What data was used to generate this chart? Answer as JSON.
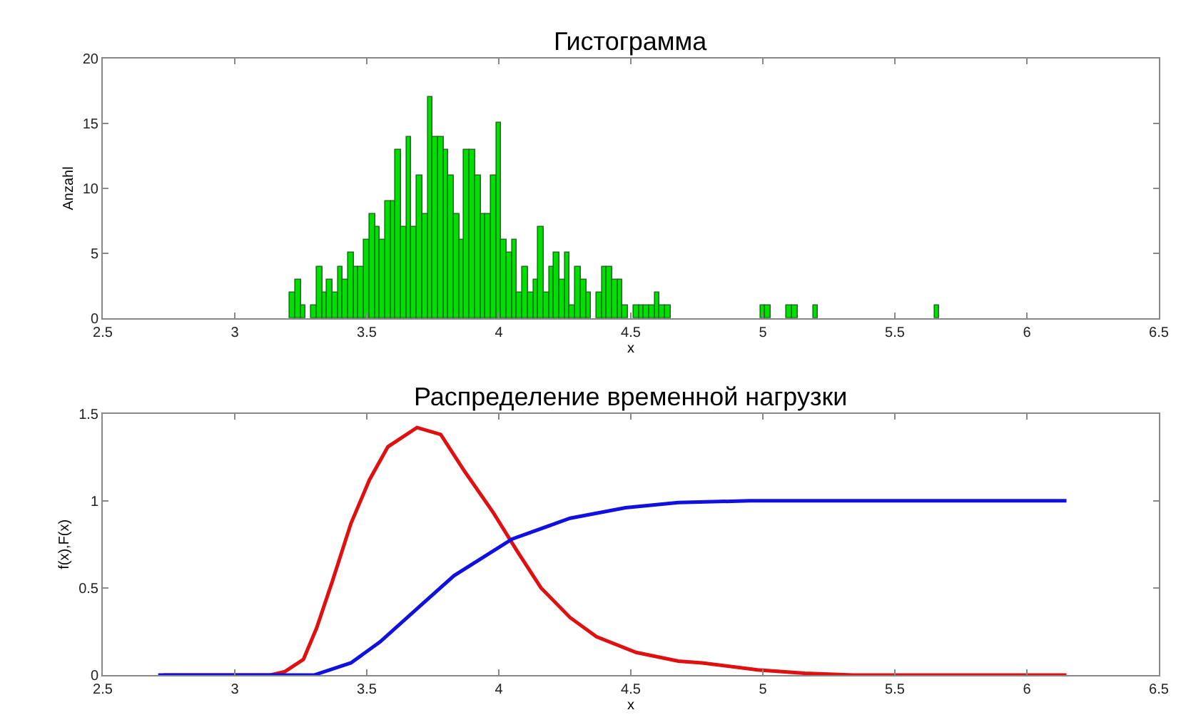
{
  "chart_data": [
    {
      "type": "histogram",
      "title": "Гистограмма",
      "xlabel": "x",
      "ylabel": "Anzahl",
      "color": "#00e000",
      "bins": [
        3.21,
        3.23,
        3.25,
        3.27,
        3.29,
        3.31,
        3.33,
        3.35,
        3.37,
        3.39,
        3.41,
        3.43,
        3.45,
        3.47,
        3.49,
        3.51,
        3.53,
        3.55,
        3.57,
        3.59,
        3.61,
        3.63,
        3.65,
        3.67,
        3.69,
        3.71,
        3.73,
        3.75,
        3.77,
        3.79,
        3.81,
        3.83,
        3.85,
        3.87,
        3.89,
        3.91,
        3.93,
        3.95,
        3.97,
        3.99,
        4.01,
        4.03,
        4.05,
        4.07,
        4.09,
        4.11,
        4.13,
        4.15,
        4.17,
        4.19,
        4.21,
        4.23,
        4.25,
        4.27,
        4.29,
        4.31,
        4.33,
        4.35,
        4.37,
        4.39,
        4.41,
        4.43,
        4.45,
        4.47,
        4.49,
        4.51,
        4.53,
        4.55,
        4.57,
        4.59,
        4.61,
        4.63,
        4.65,
        4.67,
        4.69,
        4.71,
        4.73,
        4.75,
        4.77,
        4.79,
        4.81,
        4.83,
        4.85,
        4.87,
        4.89,
        4.91,
        4.93,
        4.95,
        4.97,
        4.99,
        5.01,
        5.03,
        5.05,
        5.07,
        5.09,
        5.11,
        5.13,
        5.15,
        5.17,
        5.19,
        5.21,
        5.23,
        5.25,
        5.27,
        5.29,
        5.31,
        5.33,
        5.35,
        5.37,
        5.39,
        5.41,
        5.43,
        5.45,
        5.47,
        5.49,
        5.51,
        5.53,
        5.55,
        5.57,
        5.59,
        5.61,
        5.63,
        5.65,
        5.67
      ],
      "values": [
        2,
        3,
        1,
        0,
        1,
        4,
        2,
        3,
        2,
        4,
        3,
        5,
        4,
        4,
        6,
        8,
        7,
        6,
        9,
        9,
        13,
        7,
        14,
        7,
        11,
        8,
        17,
        14,
        14,
        13,
        11,
        8,
        6,
        13,
        13,
        11,
        8,
        8,
        11,
        15,
        6,
        5,
        6,
        2,
        4,
        2,
        3,
        7,
        2,
        4,
        5,
        3,
        5,
        1,
        4,
        3,
        2,
        0,
        2,
        4,
        4,
        3,
        3,
        1,
        0,
        1,
        1,
        1,
        1,
        2,
        1,
        1,
        0,
        0,
        0,
        0,
        0,
        0,
        0,
        0,
        0,
        0,
        0,
        0,
        0,
        0,
        0,
        0,
        0,
        1,
        1,
        0,
        0,
        0,
        1,
        1,
        0,
        0,
        0,
        1,
        0,
        0,
        0,
        0,
        0,
        0,
        0,
        0,
        0,
        0,
        0,
        0,
        0,
        0,
        0,
        0,
        0,
        0,
        0,
        0,
        0,
        0,
        1
      ],
      "xlim": [
        2.5,
        6.5
      ],
      "xticks": [
        2.5,
        3,
        3.5,
        4,
        4.5,
        5,
        5.5,
        6,
        6.5
      ],
      "ylim": [
        0,
        20
      ],
      "yticks": [
        0,
        5,
        10,
        15,
        20
      ]
    },
    {
      "type": "line",
      "title": "Распределение временной нагрузки",
      "xlabel": "x",
      "ylabel": "f(x),F(x)",
      "marker": "none",
      "line_style": "solid",
      "series": [
        {
          "color": "#e01010",
          "x": [
            2.73,
            3.0,
            3.135,
            3.19,
            3.26,
            3.31,
            3.37,
            3.44,
            3.51,
            3.58,
            3.69,
            3.78,
            3.87,
            3.98,
            4.07,
            4.16,
            4.27,
            4.37,
            4.52,
            4.68,
            4.77,
            4.98,
            5.16,
            5.34,
            6.15
          ],
          "values": [
            0,
            0,
            0,
            0.02,
            0.09,
            0.27,
            0.54,
            0.87,
            1.12,
            1.31,
            1.42,
            1.38,
            1.17,
            0.93,
            0.71,
            0.5,
            0.33,
            0.22,
            0.13,
            0.08,
            0.07,
            0.03,
            0.01,
            0,
            0
          ]
        },
        {
          "color": "#1010e0",
          "x": [
            2.71,
            3.0,
            3.3,
            3.44,
            3.55,
            3.69,
            3.83,
            4.05,
            4.27,
            4.48,
            4.68,
            4.95,
            6.15
          ],
          "values": [
            0,
            0,
            0,
            0.07,
            0.19,
            0.38,
            0.57,
            0.78,
            0.9,
            0.96,
            0.99,
            1.0,
            1.0
          ]
        }
      ],
      "xlim": [
        2.5,
        6.5
      ],
      "xticks": [
        2.5,
        3,
        3.5,
        4,
        4.5,
        5,
        5.5,
        6,
        6.5
      ],
      "ylim": [
        0,
        1.5
      ],
      "yticks": [
        0,
        0.5,
        1,
        1.5
      ]
    }
  ]
}
